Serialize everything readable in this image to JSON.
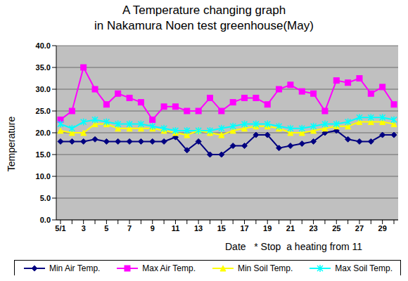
{
  "chart_data": {
    "type": "line",
    "title": "A Temperature changing graph",
    "subtitle": "in Nakamura Noen test greenhouse(May)",
    "x_label": "Date",
    "y_label": "Temperature",
    "annotation": "* Stop  a heating from 11",
    "categories": [
      "5/1",
      null,
      "3",
      null,
      "5",
      null,
      "7",
      null,
      "9",
      null,
      "11",
      null,
      "13",
      null,
      "15",
      null,
      "17",
      null,
      "19",
      null,
      "21",
      null,
      "23",
      null,
      "25",
      null,
      "27",
      null,
      "29",
      null
    ],
    "series": [
      {
        "name": "Min Air Temp.",
        "color": "#000080",
        "marker": "diamond",
        "values": [
          18,
          18,
          18,
          18.5,
          18,
          18,
          18,
          18,
          18,
          18,
          19,
          16,
          18,
          15,
          15,
          17,
          17,
          19.5,
          19.5,
          16.5,
          17,
          17.5,
          18,
          20,
          20.5,
          18.5,
          18,
          18,
          19.5,
          19.5
        ]
      },
      {
        "name": "Max Air Temp.",
        "color": "#ff00ff",
        "marker": "square",
        "values": [
          23,
          25,
          35,
          30,
          26.5,
          29,
          28,
          27,
          23,
          26,
          26,
          25,
          25,
          28,
          25,
          27,
          28,
          28,
          26.5,
          30,
          31,
          29.5,
          29,
          25,
          32,
          31.5,
          32.5,
          29,
          30.5,
          26.5
        ]
      },
      {
        "name": "Min Soil Temp.",
        "color": "#ffff00",
        "marker": "triangle",
        "values": [
          20.5,
          20,
          20,
          22,
          22,
          21,
          21,
          21,
          21,
          20.5,
          20,
          19.5,
          20.5,
          20,
          19.5,
          20.5,
          21,
          21.5,
          21.5,
          21,
          20,
          20,
          20.5,
          21,
          21.5,
          21.5,
          22.5,
          22.5,
          22.5,
          22
        ]
      },
      {
        "name": "Max Soil Temp.",
        "color": "#00ffff",
        "marker": "asterisk",
        "values": [
          22,
          21,
          22.5,
          23,
          22.5,
          22,
          22,
          22,
          21.5,
          21,
          20.5,
          20.5,
          20.5,
          20.5,
          21,
          21.5,
          22,
          22,
          22,
          21.5,
          21,
          21,
          21.5,
          22,
          22,
          22.5,
          23.5,
          23.5,
          23.5,
          23
        ]
      }
    ],
    "ylim": [
      0,
      40
    ],
    "yticks": [
      {
        "value": 0,
        "label": "0.0"
      },
      {
        "value": 5,
        "label": "5.0"
      },
      {
        "value": 10,
        "label": "10.0"
      },
      {
        "value": 15,
        "label": "15.0"
      },
      {
        "value": 20,
        "label": "20.0"
      },
      {
        "value": 25,
        "label": "25.0"
      },
      {
        "value": 30,
        "label": "30.0"
      },
      {
        "value": 35,
        "label": "35.0"
      },
      {
        "value": 40,
        "label": "40.0"
      }
    ],
    "grid": true,
    "legend": "bottom"
  }
}
